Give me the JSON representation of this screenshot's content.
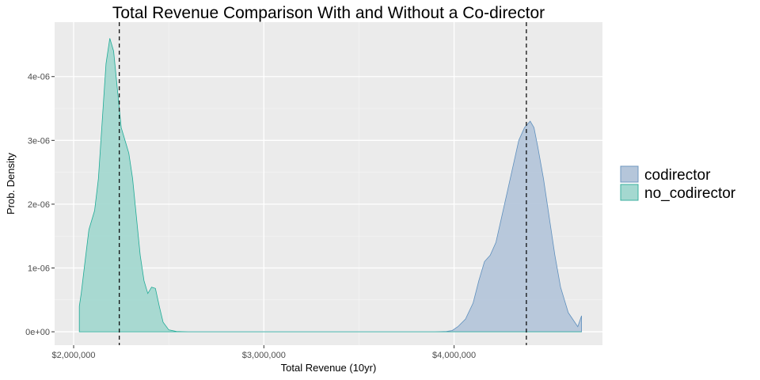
{
  "chart_data": {
    "type": "area",
    "subtype": "density",
    "title": "Total Revenue Comparison With and Without a Co-director",
    "xlabel": "Total Revenue (10yr)",
    "ylabel": "Prob. Density",
    "xlim": [
      1900000,
      4780000
    ],
    "ylim": [
      -2.1e-07,
      4.853e-06
    ],
    "x_ticks": [
      {
        "value": 2000000,
        "label": "$2,000,000"
      },
      {
        "value": 3000000,
        "label": "$3,000,000"
      },
      {
        "value": 4000000,
        "label": "$4,000,000"
      }
    ],
    "y_ticks": [
      {
        "value": 0,
        "label": "0e+00"
      },
      {
        "value": 1e-06,
        "label": "1e-06"
      },
      {
        "value": 2e-06,
        "label": "2e-06"
      },
      {
        "value": 3e-06,
        "label": "3e-06"
      },
      {
        "value": 4e-06,
        "label": "4e-06"
      }
    ],
    "grid": true,
    "legend_position": "right",
    "series": [
      {
        "name": "codirector",
        "color": "#b5c6da",
        "stroke": "#5e8fbd",
        "mean_line": 4380000,
        "points": [
          [
            2030000,
            0
          ],
          [
            3900000,
            0
          ],
          [
            3960000,
            5e-09
          ],
          [
            3990000,
            2e-08
          ],
          [
            4020000,
            8e-08
          ],
          [
            4060000,
            2e-07
          ],
          [
            4100000,
            4.5e-07
          ],
          [
            4130000,
            8e-07
          ],
          [
            4160000,
            1.1e-06
          ],
          [
            4190000,
            1.2e-06
          ],
          [
            4220000,
            1.4e-06
          ],
          [
            4250000,
            1.8e-06
          ],
          [
            4280000,
            2.2e-06
          ],
          [
            4310000,
            2.6e-06
          ],
          [
            4340000,
            3e-06
          ],
          [
            4370000,
            3.2e-06
          ],
          [
            4400000,
            3.3e-06
          ],
          [
            4420000,
            3.2e-06
          ],
          [
            4440000,
            2.9e-06
          ],
          [
            4470000,
            2.4e-06
          ],
          [
            4500000,
            1.8e-06
          ],
          [
            4530000,
            1.2e-06
          ],
          [
            4560000,
            7e-07
          ],
          [
            4600000,
            3e-07
          ],
          [
            4650000,
            8e-08
          ],
          [
            4670000,
            2.5e-07
          ],
          [
            4670000,
            0
          ]
        ]
      },
      {
        "name": "no_codirector",
        "color": "#a4d8d0",
        "stroke": "#1faa96",
        "mean_line": 2240000,
        "points": [
          [
            2030000,
            4e-07
          ],
          [
            2040000,
            6e-07
          ],
          [
            2060000,
            1.1e-06
          ],
          [
            2080000,
            1.6e-06
          ],
          [
            2110000,
            1.9e-06
          ],
          [
            2130000,
            2.4e-06
          ],
          [
            2150000,
            3.3e-06
          ],
          [
            2170000,
            4.2e-06
          ],
          [
            2190000,
            4.6e-06
          ],
          [
            2210000,
            4.4e-06
          ],
          [
            2230000,
            3.8e-06
          ],
          [
            2250000,
            3.2e-06
          ],
          [
            2270000,
            3e-06
          ],
          [
            2290000,
            2.8e-06
          ],
          [
            2310000,
            2.4e-06
          ],
          [
            2330000,
            1.8e-06
          ],
          [
            2350000,
            1.2e-06
          ],
          [
            2370000,
            8e-07
          ],
          [
            2390000,
            6e-07
          ],
          [
            2410000,
            7e-07
          ],
          [
            2430000,
            6.8e-07
          ],
          [
            2450000,
            4e-07
          ],
          [
            2470000,
            1.5e-07
          ],
          [
            2500000,
            3e-08
          ],
          [
            2540000,
            5e-09
          ],
          [
            2600000,
            0
          ],
          [
            3800000,
            0
          ],
          [
            4670000,
            0
          ],
          [
            4670000,
            0
          ],
          [
            2030000,
            0
          ]
        ]
      }
    ]
  }
}
